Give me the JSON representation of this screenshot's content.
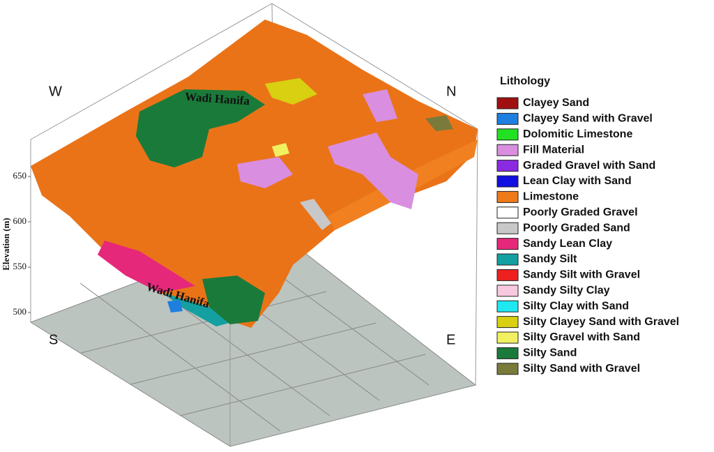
{
  "axis": {
    "label": "Elevation (m)",
    "ticks": [
      650,
      600,
      550,
      500
    ]
  },
  "directions": {
    "w": "W",
    "n": "N",
    "s": "S",
    "e": "E"
  },
  "annotations": [
    "Wadi Hanifa",
    "Wadi Hanifa"
  ],
  "legend": {
    "title": "Lithology",
    "items": [
      {
        "name": "Clayey Sand",
        "color": "#a01010"
      },
      {
        "name": "Clayey Sand with Gravel",
        "color": "#1e7fe0"
      },
      {
        "name": "Dolomitic Limestone",
        "color": "#22e022"
      },
      {
        "name": "Fill Material",
        "color": "#d98ee0"
      },
      {
        "name": "Graded Gravel with Sand",
        "color": "#8a2be2"
      },
      {
        "name": "Lean Clay with Sand",
        "color": "#1010e0"
      },
      {
        "name": "Limestone",
        "color": "#ee7a1a"
      },
      {
        "name": "Poorly Graded Gravel",
        "color": "#ffffff"
      },
      {
        "name": "Poorly Graded Sand",
        "color": "#c8c8c8"
      },
      {
        "name": "Sandy Lean Clay",
        "color": "#e6287a"
      },
      {
        "name": "Sandy Silt",
        "color": "#14a0a0"
      },
      {
        "name": "Sandy Silt with Gravel",
        "color": "#ee2020"
      },
      {
        "name": "Sandy Silty Clay",
        "color": "#f8c8e0"
      },
      {
        "name": "Silty Clay with Sand",
        "color": "#20e8f0"
      },
      {
        "name": "Silty Clayey Sand with Gravel",
        "color": "#d8d010"
      },
      {
        "name": "Silty Gravel with Sand",
        "color": "#f0f060"
      },
      {
        "name": "Silty Sand",
        "color": "#1a7a3a"
      },
      {
        "name": "Silty Sand with Gravel",
        "color": "#7a7a3a"
      }
    ]
  }
}
